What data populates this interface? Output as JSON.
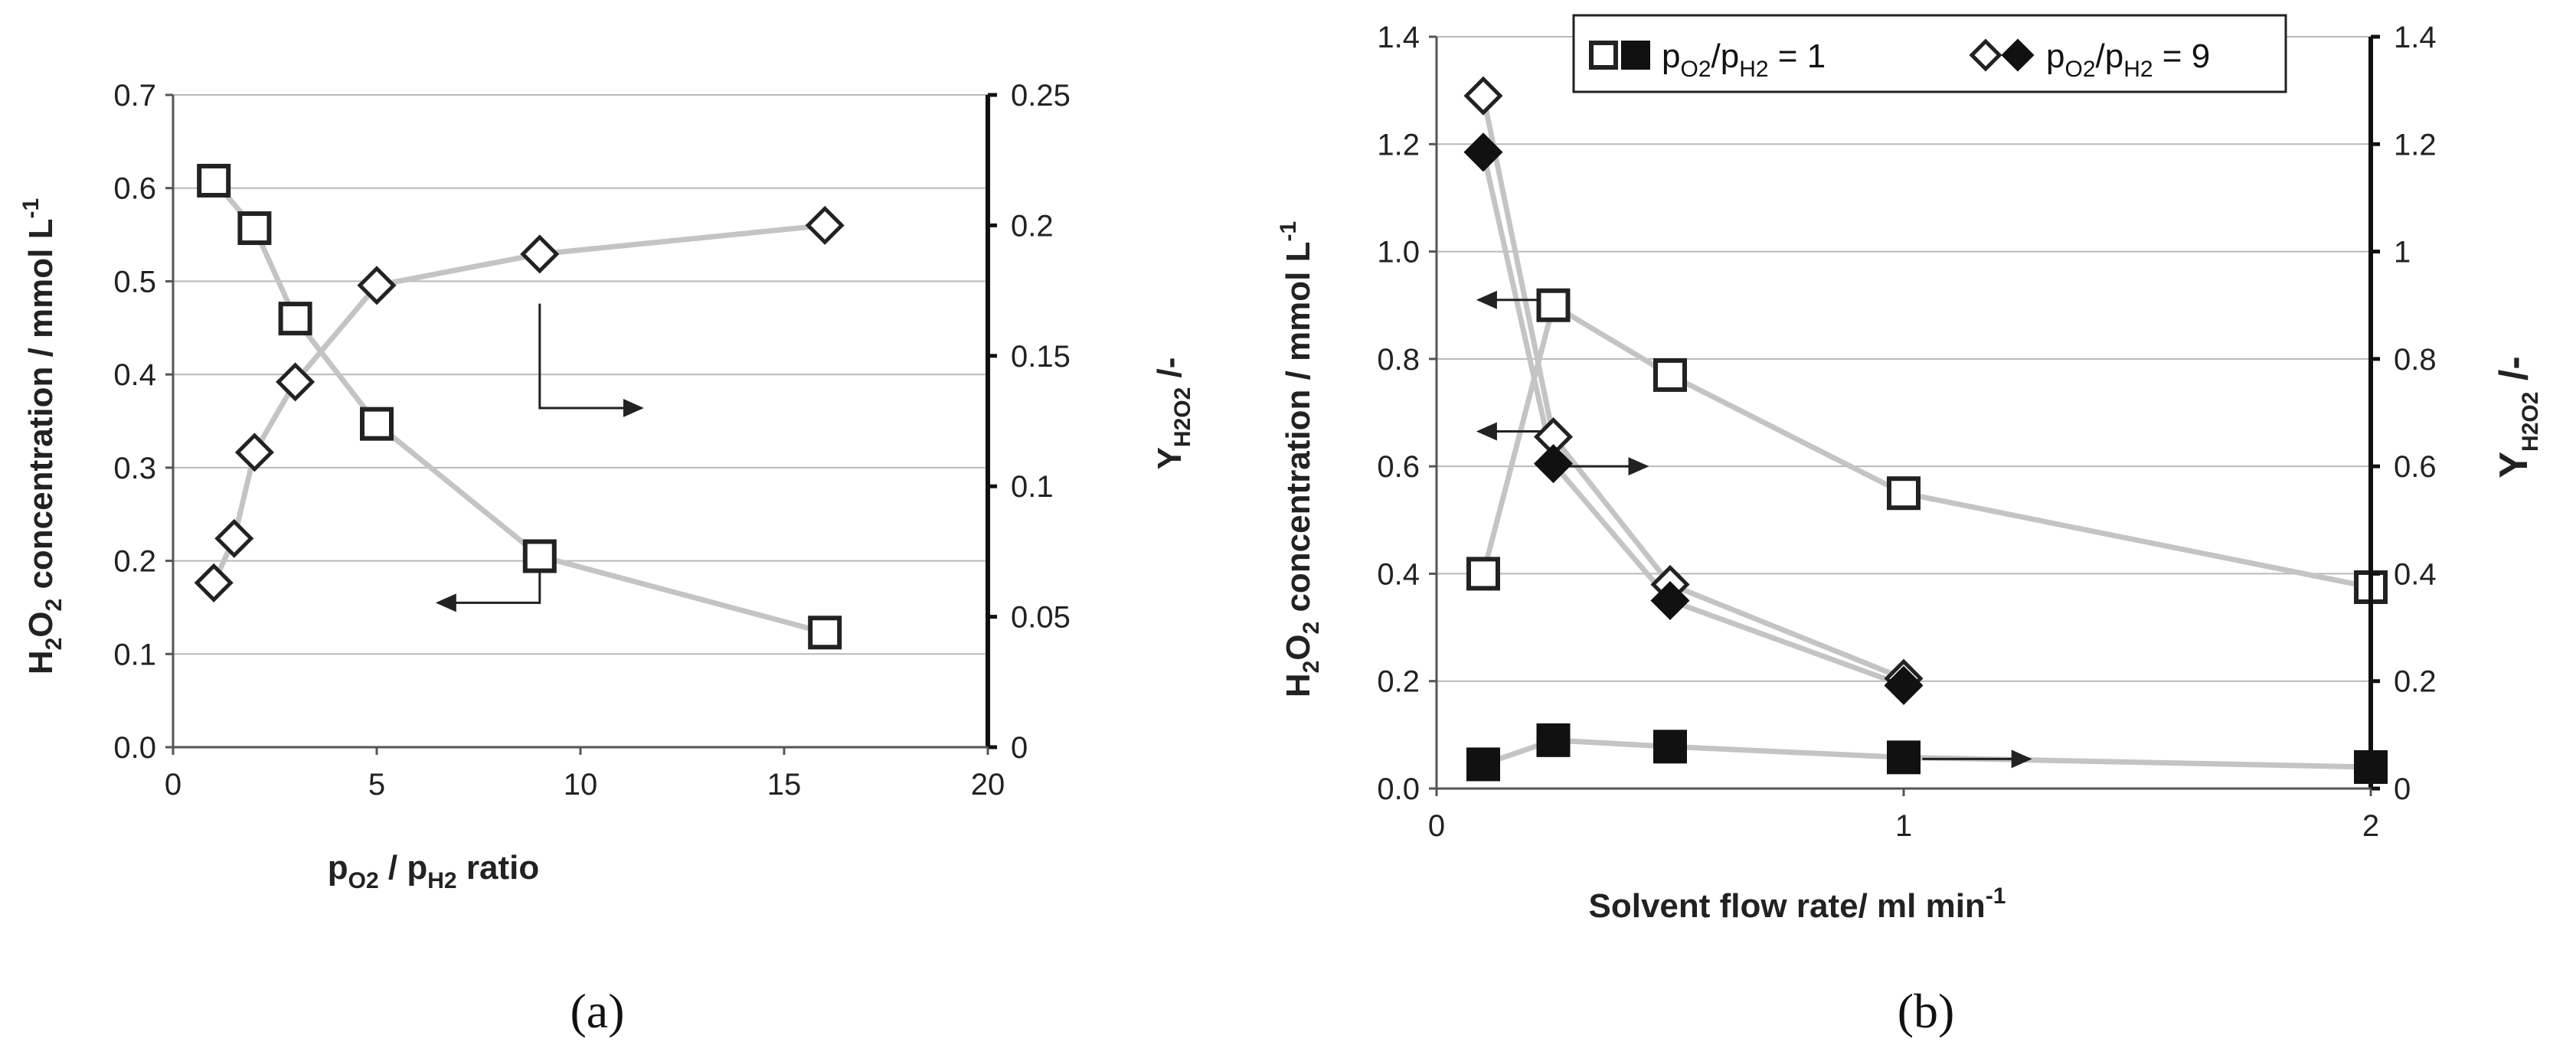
{
  "chart_data": [
    {
      "type": "line",
      "panel_label": "(a)",
      "xlabel": {
        "main": "p",
        "sub1": "O2",
        "mid": " / p",
        "sub2": "H2",
        "end": " ratio"
      },
      "ylabel_left": {
        "pre": "H",
        "sub1": "2",
        "mid": "O",
        "sub2": "2",
        "post": " concentration / mmol L",
        "sup": "-1"
      },
      "ylabel_right": {
        "pre": "Y",
        "sub": "H2O2",
        "post": " /-"
      },
      "xlim": [
        0,
        20
      ],
      "ylim_left": [
        0,
        0.7
      ],
      "ylim_right": [
        0,
        0.25
      ],
      "x_ticks": [
        "0",
        "5",
        "10",
        "15",
        "20"
      ],
      "x_tick_values": [
        0,
        5,
        10,
        15,
        20
      ],
      "y_left_ticks": [
        "0.0",
        "0.1",
        "0.2",
        "0.3",
        "0.4",
        "0.5",
        "0.6",
        "0.7"
      ],
      "y_left_tick_values": [
        0,
        0.1,
        0.2,
        0.3,
        0.4,
        0.5,
        0.6,
        0.7
      ],
      "y_right_ticks": [
        "0",
        "0.05",
        "0.1",
        "0.15",
        "0.2",
        "0.25"
      ],
      "y_right_tick_values": [
        0,
        0.05,
        0.1,
        0.15,
        0.2,
        0.25
      ],
      "series": [
        {
          "name": "H2O2 concentration",
          "axis": "left",
          "marker": "square-open",
          "x": [
            1,
            2,
            3,
            5,
            9,
            16
          ],
          "y": [
            0.608,
            0.557,
            0.46,
            0.347,
            0.205,
            0.123
          ]
        },
        {
          "name": "Y H2O2",
          "axis": "right",
          "marker": "diamond-open",
          "x": [
            1,
            1.5,
            2,
            3,
            5,
            9,
            16
          ],
          "y": [
            0.063,
            0.08,
            0.113,
            0.14,
            0.177,
            0.189,
            0.2
          ]
        }
      ],
      "annotations": [
        {
          "type": "arrow",
          "points": [
            [
              9,
              0.205
            ],
            [
              9,
              0.155
            ],
            [
              6.5,
              0.155
            ]
          ],
          "data_axis": "left"
        },
        {
          "type": "arrow",
          "points": [
            [
              9,
              0.17
            ],
            [
              9,
              0.13
            ],
            [
              11.5,
              0.13
            ]
          ],
          "data_axis": "right"
        }
      ],
      "grid": "horizontal"
    },
    {
      "type": "line",
      "panel_label": "(b)",
      "xlabel": {
        "main": "Solvent flow rate/ ml min",
        "sup": "-1"
      },
      "ylabel_left": {
        "pre": "H",
        "sub1": "2",
        "mid": "O",
        "sub2": "2",
        "post": " concentration / mmol L",
        "sup": "-1"
      },
      "ylabel_right": {
        "pre": "Y",
        "sub": "H2O2",
        "post": " /-"
      },
      "xlim": [
        0,
        2
      ],
      "ylim_left": [
        0,
        1.4
      ],
      "ylim_right": [
        0,
        1.4
      ],
      "x_ticks": [
        "0",
        "1",
        "2"
      ],
      "x_tick_values": [
        0,
        1,
        2
      ],
      "y_left_ticks": [
        "0.0",
        "0.2",
        "0.4",
        "0.6",
        "0.8",
        "1.0",
        "1.2",
        "1.4"
      ],
      "y_left_tick_values": [
        0,
        0.2,
        0.4,
        0.6,
        0.8,
        1.0,
        1.2,
        1.4
      ],
      "y_right_ticks": [
        "0",
        "0.2",
        "0.4",
        "0.6",
        "0.8",
        "1",
        "1.2",
        "1.4"
      ],
      "y_right_tick_values": [
        0,
        0.2,
        0.4,
        0.6,
        0.8,
        1.0,
        1.2,
        1.4
      ],
      "series": [
        {
          "name": "pO2/pH2 = 1 concentration",
          "axis": "left",
          "marker": "square-open",
          "x": [
            0.1,
            0.25,
            0.5,
            1,
            2
          ],
          "y": [
            0.4,
            0.9,
            0.77,
            0.55,
            0.375
          ]
        },
        {
          "name": "pO2/pH2 = 1 yield",
          "axis": "right",
          "marker": "square-filled",
          "x": [
            0.1,
            0.25,
            0.5,
            1,
            2
          ],
          "y": [
            0.045,
            0.09,
            0.078,
            0.058,
            0.04
          ]
        },
        {
          "name": "pO2/pH2 = 9 concentration",
          "axis": "left",
          "marker": "diamond-open",
          "x": [
            0.1,
            0.25,
            0.5,
            1
          ],
          "y": [
            1.29,
            0.655,
            0.38,
            0.205
          ]
        },
        {
          "name": "pO2/pH2 = 9 yield",
          "axis": "right",
          "marker": "diamond-filled",
          "x": [
            0.1,
            0.25,
            0.5,
            1
          ],
          "y": [
            1.185,
            0.605,
            0.35,
            0.192
          ]
        }
      ],
      "annotations": [
        {
          "type": "arrow",
          "points": [
            [
              0.25,
              0.91
            ],
            [
              0.09,
              0.91
            ]
          ],
          "data_axis": "left"
        },
        {
          "type": "arrow",
          "points": [
            [
              0.25,
              0.665
            ],
            [
              0.09,
              0.665
            ]
          ],
          "data_axis": "left"
        },
        {
          "type": "arrow",
          "points": [
            [
              0.27,
              0.6
            ],
            [
              0.45,
              0.6
            ]
          ],
          "data_axis": "left"
        },
        {
          "type": "arrow",
          "points": [
            [
              1.04,
              0.055
            ],
            [
              1.27,
              0.055
            ]
          ],
          "data_axis": "left"
        }
      ],
      "legend": {
        "position": "top-right",
        "entry1": {
          "p": "p",
          "s1": "O2",
          "mid": "/p",
          "s2": "H2",
          "val": " = 1"
        },
        "entry2": {
          "p": "p",
          "s1": "O2",
          "mid": "/p",
          "s2": "H2",
          "val": " = 9"
        }
      },
      "grid": "horizontal"
    }
  ]
}
